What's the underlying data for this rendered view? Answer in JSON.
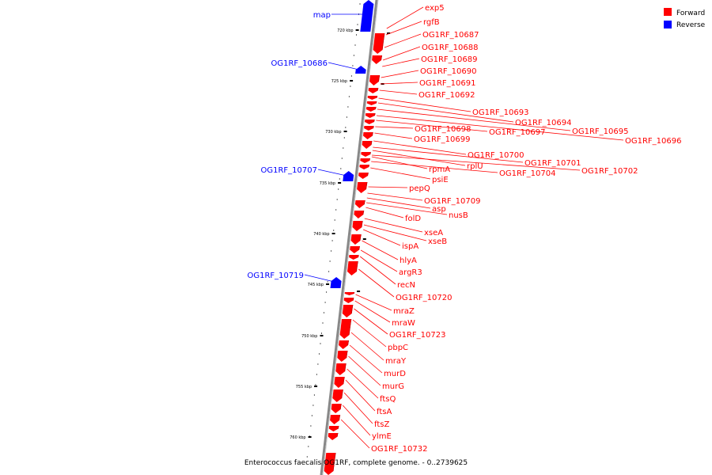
{
  "colors": {
    "forward": "#ff0000",
    "reverse": "#0000ff",
    "backbone": "#888888"
  },
  "legend": [
    {
      "label": "Forward",
      "strand": "forward"
    },
    {
      "label": "Reverse",
      "strand": "reverse"
    }
  ],
  "caption": "Enterococcus faecalis OG1RF, complete genome. - 0..2739625",
  "scale_ticks": [
    "720 kbp",
    "725 kbp",
    "730 kbp",
    "735 kbp",
    "740 kbp",
    "745 kbp",
    "750 kbp",
    "755 kbp",
    "760 kbp"
  ],
  "reverse_genes": [
    "map",
    "OG1RF_10686",
    "OG1RF_10707",
    "OG1RF_10719"
  ],
  "forward_genes": [
    "exp5",
    "rgfB",
    "OG1RF_10687",
    "OG1RF_10688",
    "OG1RF_10689",
    "OG1RF_10690",
    "OG1RF_10691",
    "OG1RF_10692",
    "OG1RF_10693",
    "OG1RF_10694",
    "OG1RF_10695",
    "OG1RF_10696",
    "OG1RF_10697",
    "OG1RF_10698",
    "OG1RF_10699",
    "OG1RF_10700",
    "OG1RF_10701",
    "rplU",
    "OG1RF_10702",
    "rpmA",
    "OG1RF_10704",
    "psiE",
    "pepQ",
    "OG1RF_10709",
    "asp",
    "nusB",
    "folD",
    "xseA",
    "xseB",
    "ispA",
    "hlyA",
    "argR3",
    "recN",
    "OG1RF_10720",
    "mraZ",
    "mraW",
    "OG1RF_10723",
    "pbpC",
    "mraY",
    "murD",
    "murG",
    "ftsQ",
    "ftsA",
    "ftsZ",
    "ylmE",
    "OG1RF_10732"
  ]
}
